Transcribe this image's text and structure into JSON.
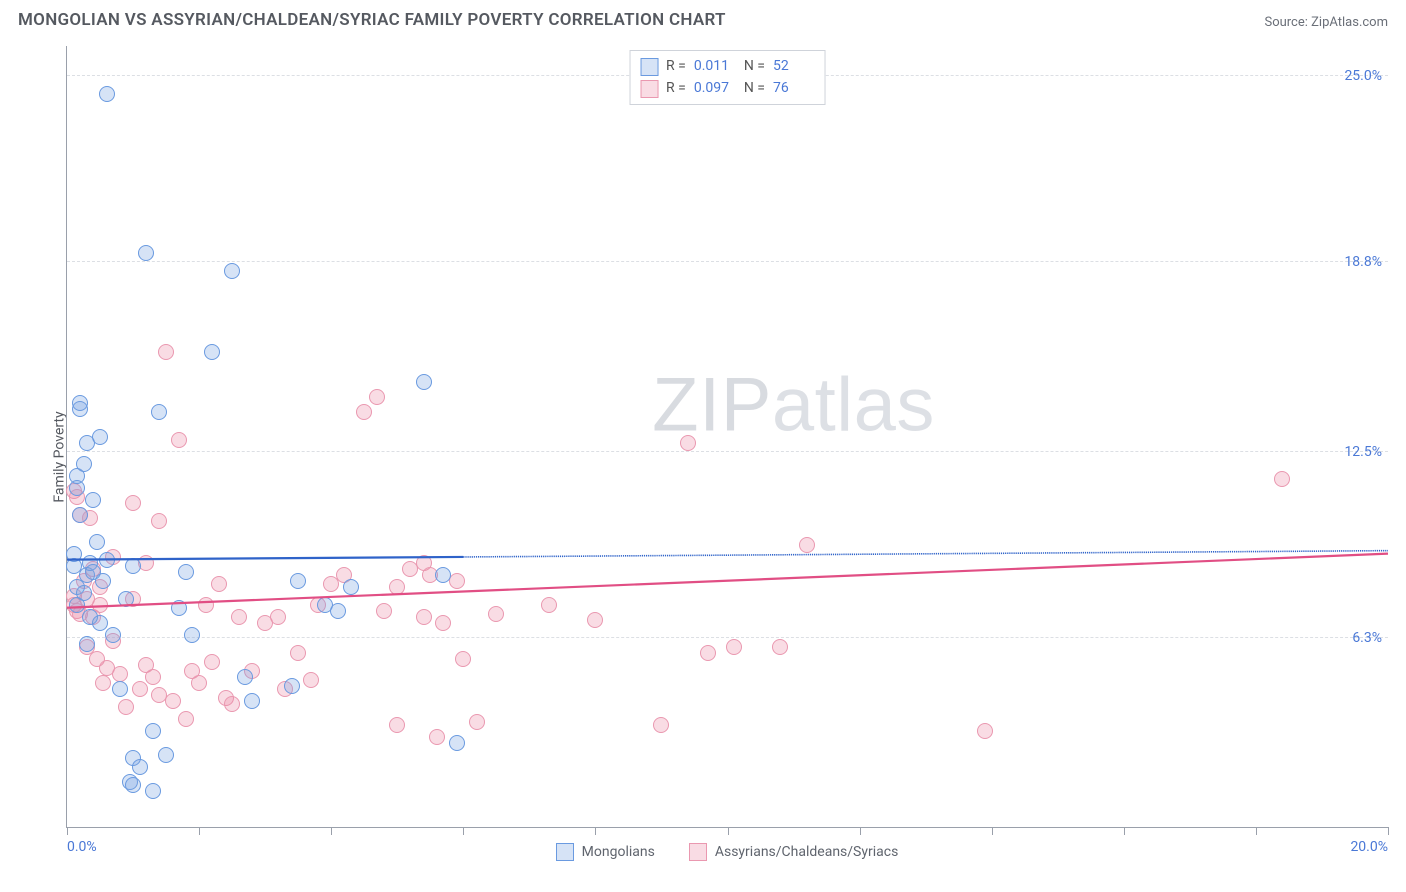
{
  "header": {
    "title": "MONGOLIAN VS ASSYRIAN/CHALDEAN/SYRIAC FAMILY POVERTY CORRELATION CHART",
    "source": "Source: ZipAtlas.com"
  },
  "watermark": {
    "bold": "ZIP",
    "light": "atlas"
  },
  "chart": {
    "type": "scatter",
    "ylabel": "Family Poverty",
    "xlim": [
      0,
      20
    ],
    "ylim": [
      0,
      26
    ],
    "x_axis_labels": [
      {
        "value": 0.0,
        "text": "0.0%"
      },
      {
        "value": 20.0,
        "text": "20.0%"
      }
    ],
    "x_ticks": [
      0,
      2,
      4,
      6,
      8,
      10,
      12,
      14,
      16,
      18,
      20
    ],
    "y_gridlines": [
      {
        "value": 6.3,
        "text": "6.3%"
      },
      {
        "value": 12.5,
        "text": "12.5%"
      },
      {
        "value": 18.8,
        "text": "18.8%"
      },
      {
        "value": 25.0,
        "text": "25.0%"
      }
    ],
    "grid_color": "#dcdfe4",
    "axis_color": "#9aa0ab",
    "background_color": "#ffffff",
    "label_color": "#4a78d6",
    "marker_radius": 8,
    "series": {
      "mongolian": {
        "label": "Mongolians",
        "color_fill": "rgba(118,162,224,0.30)",
        "color_stroke": "#6a9ae0",
        "r_value": "0.011",
        "n_value": "52",
        "trend": {
          "slope": 0.015,
          "intercept": 8.9,
          "solid_xmax": 6.0,
          "stroke": "#2f63c9"
        },
        "points": [
          [
            0.1,
            8.7
          ],
          [
            0.1,
            9.1
          ],
          [
            0.15,
            8.0
          ],
          [
            0.15,
            11.3
          ],
          [
            0.15,
            7.4
          ],
          [
            0.15,
            11.7
          ],
          [
            0.2,
            13.9
          ],
          [
            0.2,
            14.1
          ],
          [
            0.2,
            10.4
          ],
          [
            0.25,
            7.8
          ],
          [
            0.25,
            12.1
          ],
          [
            0.3,
            6.1
          ],
          [
            0.3,
            12.8
          ],
          [
            0.3,
            8.4
          ],
          [
            0.35,
            8.8
          ],
          [
            0.35,
            7.0
          ],
          [
            0.4,
            10.9
          ],
          [
            0.4,
            8.5
          ],
          [
            0.45,
            9.5
          ],
          [
            0.5,
            6.8
          ],
          [
            0.5,
            13.0
          ],
          [
            0.55,
            8.2
          ],
          [
            0.6,
            24.4
          ],
          [
            0.6,
            8.9
          ],
          [
            0.7,
            6.4
          ],
          [
            0.8,
            4.6
          ],
          [
            0.9,
            7.6
          ],
          [
            0.95,
            1.5
          ],
          [
            1.0,
            1.4
          ],
          [
            1.0,
            2.3
          ],
          [
            1.0,
            8.7
          ],
          [
            1.1,
            2.0
          ],
          [
            1.2,
            19.1
          ],
          [
            1.3,
            1.2
          ],
          [
            1.3,
            3.2
          ],
          [
            1.4,
            13.8
          ],
          [
            1.5,
            2.4
          ],
          [
            1.7,
            7.3
          ],
          [
            1.8,
            8.5
          ],
          [
            1.9,
            6.4
          ],
          [
            2.2,
            15.8
          ],
          [
            2.5,
            18.5
          ],
          [
            2.7,
            5.0
          ],
          [
            2.8,
            4.2
          ],
          [
            3.4,
            4.7
          ],
          [
            3.5,
            8.2
          ],
          [
            3.9,
            7.4
          ],
          [
            4.1,
            7.2
          ],
          [
            4.3,
            8.0
          ],
          [
            5.4,
            14.8
          ],
          [
            5.7,
            8.4
          ],
          [
            5.9,
            2.8
          ]
        ]
      },
      "assyrian": {
        "label": "Assyrians/Chaldeans/Syriacs",
        "color_fill": "rgba(236,140,166,0.30)",
        "color_stroke": "#ea98b0",
        "r_value": "0.097",
        "n_value": "76",
        "trend": {
          "slope": 0.09,
          "intercept": 7.3,
          "solid_xmax": 20.0,
          "stroke": "#e14e84"
        },
        "points": [
          [
            0.1,
            7.4
          ],
          [
            0.1,
            7.7
          ],
          [
            0.1,
            11.2
          ],
          [
            0.15,
            7.2
          ],
          [
            0.15,
            11.0
          ],
          [
            0.2,
            7.1
          ],
          [
            0.2,
            10.4
          ],
          [
            0.25,
            8.2
          ],
          [
            0.3,
            6.0
          ],
          [
            0.3,
            7.6
          ],
          [
            0.35,
            10.3
          ],
          [
            0.4,
            7.0
          ],
          [
            0.4,
            8.6
          ],
          [
            0.45,
            5.6
          ],
          [
            0.5,
            7.4
          ],
          [
            0.5,
            8.0
          ],
          [
            0.55,
            4.8
          ],
          [
            0.6,
            5.3
          ],
          [
            0.7,
            6.2
          ],
          [
            0.7,
            9.0
          ],
          [
            0.8,
            5.1
          ],
          [
            0.9,
            4.0
          ],
          [
            1.0,
            7.6
          ],
          [
            1.0,
            10.8
          ],
          [
            1.1,
            4.6
          ],
          [
            1.2,
            5.4
          ],
          [
            1.2,
            8.8
          ],
          [
            1.3,
            5.0
          ],
          [
            1.4,
            4.4
          ],
          [
            1.4,
            10.2
          ],
          [
            1.5,
            15.8
          ],
          [
            1.6,
            4.2
          ],
          [
            1.7,
            12.9
          ],
          [
            1.8,
            3.6
          ],
          [
            1.9,
            5.2
          ],
          [
            2.0,
            4.8
          ],
          [
            2.1,
            7.4
          ],
          [
            2.2,
            5.5
          ],
          [
            2.3,
            8.1
          ],
          [
            2.4,
            4.3
          ],
          [
            2.5,
            4.1
          ],
          [
            2.6,
            7.0
          ],
          [
            2.8,
            5.2
          ],
          [
            3.0,
            6.8
          ],
          [
            3.2,
            7.0
          ],
          [
            3.3,
            4.6
          ],
          [
            3.5,
            5.8
          ],
          [
            3.7,
            4.9
          ],
          [
            3.8,
            7.4
          ],
          [
            4.0,
            8.1
          ],
          [
            4.2,
            8.4
          ],
          [
            4.5,
            13.8
          ],
          [
            4.7,
            14.3
          ],
          [
            4.8,
            7.2
          ],
          [
            5.0,
            3.4
          ],
          [
            5.0,
            8.0
          ],
          [
            5.2,
            8.6
          ],
          [
            5.4,
            7.0
          ],
          [
            5.4,
            8.8
          ],
          [
            5.5,
            8.4
          ],
          [
            5.6,
            3.0
          ],
          [
            5.7,
            6.8
          ],
          [
            5.9,
            8.2
          ],
          [
            6.0,
            5.6
          ],
          [
            6.2,
            3.5
          ],
          [
            6.5,
            7.1
          ],
          [
            7.3,
            7.4
          ],
          [
            8.0,
            6.9
          ],
          [
            9.0,
            3.4
          ],
          [
            9.4,
            12.8
          ],
          [
            9.7,
            5.8
          ],
          [
            10.1,
            6.0
          ],
          [
            10.8,
            6.0
          ],
          [
            11.2,
            9.4
          ],
          [
            13.9,
            3.2
          ],
          [
            18.4,
            11.6
          ]
        ]
      }
    },
    "legend_top": {
      "r_label": "R =",
      "n_label": "N ="
    }
  }
}
